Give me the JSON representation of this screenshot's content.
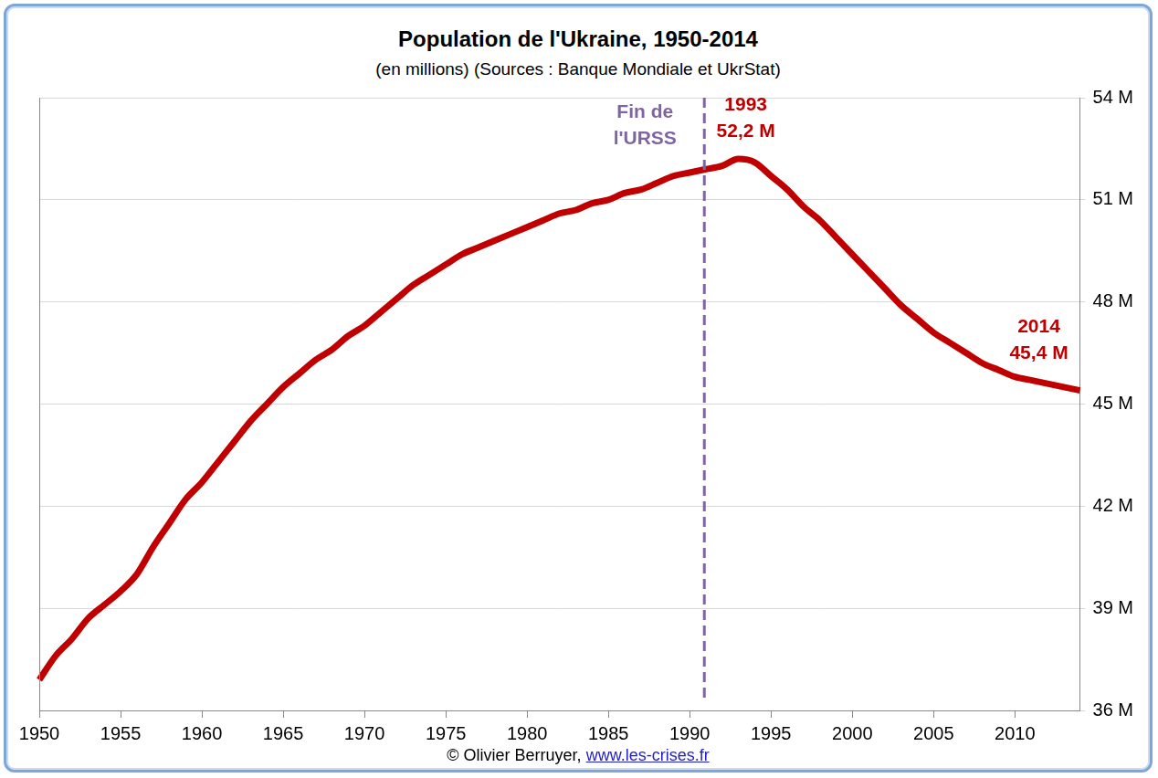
{
  "chart_data": {
    "type": "line",
    "title": "Population de l'Ukraine, 1950-2014",
    "subtitle": "(en millions) (Sources : Banque Mondiale et UkrStat)",
    "x": [
      1950,
      1951,
      1952,
      1953,
      1954,
      1955,
      1956,
      1957,
      1958,
      1959,
      1960,
      1961,
      1962,
      1963,
      1964,
      1965,
      1966,
      1967,
      1968,
      1969,
      1970,
      1971,
      1972,
      1973,
      1974,
      1975,
      1976,
      1977,
      1978,
      1979,
      1980,
      1981,
      1982,
      1983,
      1984,
      1985,
      1986,
      1987,
      1988,
      1989,
      1990,
      1991,
      1992,
      1993,
      1994,
      1995,
      1996,
      1997,
      1998,
      1999,
      2000,
      2001,
      2002,
      2003,
      2004,
      2005,
      2006,
      2007,
      2008,
      2009,
      2010,
      2011,
      2012,
      2013,
      2014
    ],
    "values": [
      36.9,
      37.6,
      38.1,
      38.7,
      39.1,
      39.5,
      40.0,
      40.8,
      41.5,
      42.2,
      42.7,
      43.3,
      43.9,
      44.5,
      45.0,
      45.5,
      45.9,
      46.3,
      46.6,
      47.0,
      47.3,
      47.7,
      48.1,
      48.5,
      48.8,
      49.1,
      49.4,
      49.6,
      49.8,
      50.0,
      50.2,
      50.4,
      50.6,
      50.7,
      50.9,
      51.0,
      51.2,
      51.3,
      51.5,
      51.7,
      51.8,
      51.9,
      52.0,
      52.2,
      52.1,
      51.7,
      51.3,
      50.8,
      50.4,
      49.9,
      49.4,
      48.9,
      48.4,
      47.9,
      47.5,
      47.1,
      46.8,
      46.5,
      46.2,
      46.0,
      45.8,
      45.7,
      45.6,
      45.5,
      45.4
    ],
    "color": "#c00000",
    "xlim": [
      1950,
      2014
    ],
    "xticks": [
      1950,
      1955,
      1960,
      1965,
      1970,
      1975,
      1980,
      1985,
      1990,
      1995,
      2000,
      2005,
      2010
    ],
    "ylim": [
      36,
      54
    ],
    "yticks": [
      {
        "value": 36,
        "label": "36 M"
      },
      {
        "value": 39,
        "label": "39 M"
      },
      {
        "value": 42,
        "label": "42 M"
      },
      {
        "value": 45,
        "label": "45 M"
      },
      {
        "value": 48,
        "label": "48 M"
      },
      {
        "value": 51,
        "label": "51 M"
      },
      {
        "value": 54,
        "label": "54 M"
      }
    ],
    "grid": true,
    "annotations": [
      {
        "type": "vline",
        "x": 1990.9,
        "text": [
          "Fin de",
          "l'URSS"
        ],
        "color": "#8064a2",
        "line_style": "dashed"
      },
      {
        "type": "label",
        "x": 1993,
        "y": 52.2,
        "text": [
          "1993",
          "52,2 M"
        ],
        "color": "#c00000"
      },
      {
        "type": "label",
        "x": 2014,
        "y": 45.4,
        "text": [
          "2014",
          "45,4 M"
        ],
        "color": "#c00000"
      }
    ],
    "footer": {
      "text": "© Olivier Berruyer,",
      "link": "www.les-crises.fr"
    }
  }
}
